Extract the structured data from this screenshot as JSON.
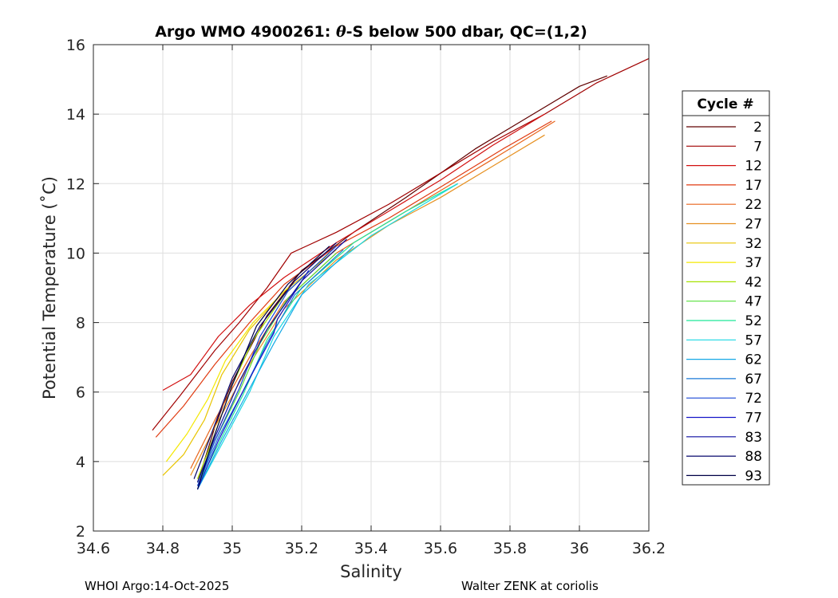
{
  "chart_data": {
    "type": "line",
    "title_prefix": "Argo WMO 4900261: ",
    "title_theta": "θ",
    "title_suffix": "-S below 500 dbar,  QC=(1,2)",
    "xlabel": "Salinity",
    "ylabel": "Potential Temperature (˚C)",
    "xlim": [
      34.6,
      36.2
    ],
    "ylim": [
      2,
      16
    ],
    "xticks": [
      "34.6",
      "34.8",
      "35",
      "35.2",
      "35.4",
      "35.6",
      "35.8",
      "36",
      "36.2"
    ],
    "yticks": [
      "2",
      "4",
      "6",
      "8",
      "10",
      "12",
      "14",
      "16"
    ],
    "grid": true,
    "legend": {
      "title": "Cycle #",
      "position": "right",
      "entries": [
        {
          "label": "2",
          "color": "#600000"
        },
        {
          "label": "7",
          "color": "#a00000"
        },
        {
          "label": "12",
          "color": "#d21010"
        },
        {
          "label": "17",
          "color": "#e03a10"
        },
        {
          "label": "22",
          "color": "#e8641a"
        },
        {
          "label": "27",
          "color": "#e69020"
        },
        {
          "label": "32",
          "color": "#e8c400"
        },
        {
          "label": "37",
          "color": "#f4e800"
        },
        {
          "label": "42",
          "color": "#a6e200"
        },
        {
          "label": "47",
          "color": "#56e03a"
        },
        {
          "label": "52",
          "color": "#1ee898"
        },
        {
          "label": "57",
          "color": "#1ad8e2"
        },
        {
          "label": "62",
          "color": "#14a8e6"
        },
        {
          "label": "67",
          "color": "#1a78d8"
        },
        {
          "label": "72",
          "color": "#1a48d6"
        },
        {
          "label": "77",
          "color": "#1414c8"
        },
        {
          "label": "83",
          "color": "#0c0ca0"
        },
        {
          "label": "88",
          "color": "#06066c"
        },
        {
          "label": "93",
          "color": "#000046"
        }
      ]
    },
    "series": [
      {
        "name": "2",
        "color": "#600000",
        "x": [
          34.9,
          34.95,
          35.0,
          35.1,
          35.2,
          35.35,
          35.5,
          35.7,
          35.85,
          36.0,
          36.08
        ],
        "y": [
          3.4,
          5.0,
          6.3,
          8.2,
          9.5,
          10.6,
          11.6,
          13.0,
          13.9,
          14.8,
          15.1
        ]
      },
      {
        "name": "7",
        "color": "#a00000",
        "x": [
          34.77,
          34.85,
          34.95,
          35.02,
          35.1,
          35.17,
          35.3,
          35.45,
          35.6,
          35.75,
          35.9,
          36.05,
          36.2
        ],
        "y": [
          4.9,
          5.9,
          7.2,
          8.0,
          9.0,
          10.0,
          10.6,
          11.4,
          12.3,
          13.2,
          14.0,
          14.9,
          15.6
        ]
      },
      {
        "name": "12",
        "color": "#d21010",
        "x": [
          34.8,
          34.88,
          34.96,
          35.05,
          35.15,
          35.3,
          35.45,
          35.6,
          35.75,
          35.9
        ],
        "y": [
          6.05,
          6.5,
          7.6,
          8.5,
          9.3,
          10.3,
          11.2,
          12.1,
          13.1,
          14.0
        ]
      },
      {
        "name": "17",
        "color": "#e03a10",
        "x": [
          34.78,
          34.86,
          34.95,
          35.05,
          35.15,
          35.3,
          35.45,
          35.6,
          35.78,
          35.92
        ],
        "y": [
          4.7,
          5.6,
          6.8,
          8.0,
          9.1,
          10.2,
          11.0,
          11.9,
          13.0,
          13.8
        ]
      },
      {
        "name": "22",
        "color": "#e8641a",
        "x": [
          34.88,
          34.95,
          35.05,
          35.15,
          35.3,
          35.45,
          35.6,
          35.75,
          35.93
        ],
        "y": [
          3.8,
          5.2,
          7.0,
          8.6,
          10.0,
          10.9,
          11.8,
          12.7,
          13.8
        ]
      },
      {
        "name": "27",
        "color": "#e69020",
        "x": [
          34.88,
          34.95,
          35.05,
          35.15,
          35.3,
          35.45,
          35.6,
          35.75,
          35.9
        ],
        "y": [
          3.6,
          5.0,
          6.8,
          8.4,
          9.8,
          10.8,
          11.6,
          12.5,
          13.4
        ]
      },
      {
        "name": "32",
        "color": "#e8c400",
        "x": [
          34.8,
          34.86,
          34.92,
          34.97,
          35.05,
          35.15,
          35.3
        ],
        "y": [
          3.6,
          4.2,
          5.2,
          6.5,
          7.8,
          8.9,
          10.1
        ]
      },
      {
        "name": "37",
        "color": "#f4e800",
        "x": [
          34.81,
          34.87,
          34.93,
          34.98,
          35.06,
          35.16
        ],
        "y": [
          4.0,
          4.8,
          5.8,
          6.9,
          8.0,
          9.0
        ]
      },
      {
        "name": "42",
        "color": "#a6e200",
        "x": [
          34.9,
          34.95,
          35.0,
          35.06,
          35.15,
          35.28
        ],
        "y": [
          3.5,
          4.8,
          6.2,
          7.5,
          8.8,
          10.0
        ]
      },
      {
        "name": "47",
        "color": "#56e03a",
        "x": [
          34.9,
          34.95,
          35.02,
          35.08,
          35.16,
          35.3
        ],
        "y": [
          3.4,
          4.6,
          6.0,
          7.4,
          8.7,
          10.0
        ]
      },
      {
        "name": "52",
        "color": "#1ee898",
        "x": [
          34.9,
          34.96,
          35.03,
          35.1,
          35.2,
          35.35,
          35.5,
          35.65
        ],
        "y": [
          3.3,
          4.5,
          5.9,
          7.5,
          9.0,
          10.3,
          11.2,
          12.0
        ]
      },
      {
        "name": "57",
        "color": "#1ad8e2",
        "x": [
          34.9,
          34.97,
          35.05,
          35.12,
          35.22,
          35.4,
          35.55,
          35.65
        ],
        "y": [
          3.2,
          4.5,
          6.0,
          7.6,
          9.1,
          10.5,
          11.4,
          12.0
        ]
      },
      {
        "name": "62",
        "color": "#14a8e6",
        "x": [
          34.9,
          34.97,
          35.05,
          35.12,
          35.2,
          35.35
        ],
        "y": [
          3.2,
          4.6,
          6.1,
          7.4,
          8.8,
          10.2
        ]
      },
      {
        "name": "67",
        "color": "#1a78d8",
        "x": [
          34.9,
          34.96,
          35.03,
          35.1,
          35.18,
          35.32
        ],
        "y": [
          3.3,
          4.7,
          6.0,
          7.4,
          8.8,
          10.1
        ]
      },
      {
        "name": "72",
        "color": "#1a48d6",
        "x": [
          34.9,
          34.95,
          35.02,
          35.08,
          35.16,
          35.3
        ],
        "y": [
          3.3,
          4.6,
          6.1,
          7.6,
          8.9,
          10.2
        ]
      },
      {
        "name": "77",
        "color": "#1414c8",
        "x": [
          34.9,
          34.96,
          35.04,
          35.12,
          35.13,
          35.22
        ],
        "y": [
          3.2,
          4.6,
          6.2,
          7.7,
          8.1,
          9.5
        ]
      },
      {
        "name": "83",
        "color": "#0c0ca0",
        "x": [
          34.9,
          34.95,
          35.02,
          35.1,
          35.2,
          35.33
        ],
        "y": [
          3.4,
          4.7,
          6.3,
          7.8,
          9.2,
          10.4
        ]
      },
      {
        "name": "88",
        "color": "#06066c",
        "x": [
          34.89,
          34.94,
          35.0,
          35.08,
          35.18,
          35.3
        ],
        "y": [
          3.5,
          4.8,
          6.4,
          7.9,
          9.2,
          10.3
        ]
      },
      {
        "name": "93",
        "color": "#000046",
        "x": [
          34.9,
          34.94,
          35.0,
          35.07,
          35.16,
          35.28
        ],
        "y": [
          3.2,
          4.5,
          6.2,
          7.9,
          9.1,
          10.2
        ]
      }
    ]
  },
  "footer": {
    "left": "WHOI Argo:14-Oct-2025",
    "right": "Walter ZENK at coriolis"
  }
}
